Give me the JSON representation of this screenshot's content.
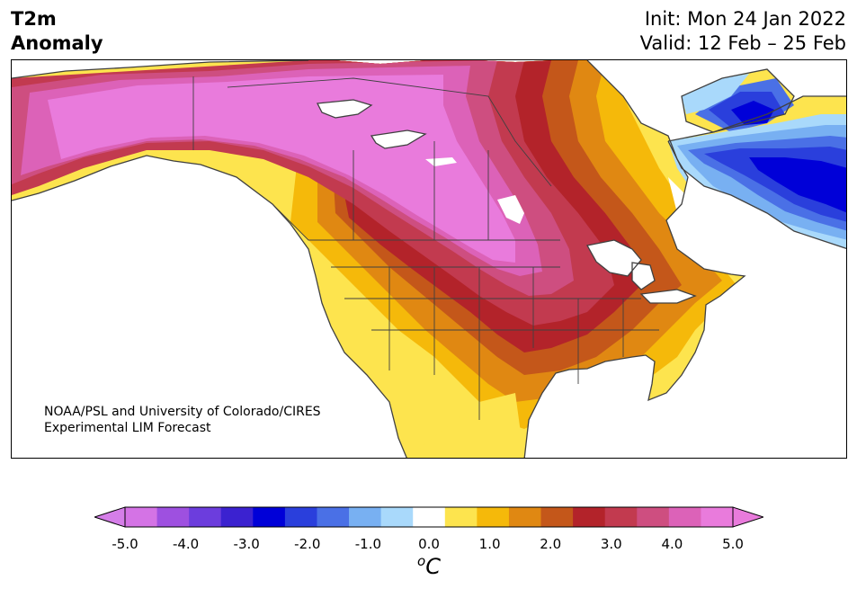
{
  "title": {
    "left_line1": "T2m",
    "left_line2": "Anomaly",
    "right_line1": "Init: Mon 24 Jan 2022",
    "right_line2": "Valid: 12 Feb – 25 Feb"
  },
  "credit": {
    "line1": "NOAA/PSL and University of Colorado/CIRES",
    "line2": "Experimental LIM Forecast"
  },
  "colorbar": {
    "levels": [
      -5.0,
      -4.5,
      -4.0,
      -3.5,
      -3.0,
      -2.5,
      -2.0,
      -1.5,
      -1.0,
      -0.5,
      0.5,
      1.0,
      1.5,
      2.0,
      2.5,
      3.0,
      3.5,
      4.0,
      4.5,
      5.0
    ],
    "colors": [
      "#d473e5",
      "#9e50e0",
      "#6c3ddd",
      "#3b22d0",
      "#0000d8",
      "#2a3fdc",
      "#4a70e6",
      "#78b0f2",
      "#a9d9fb",
      "#ffffff",
      "#fde44e",
      "#f5b90a",
      "#e08812",
      "#c4571a",
      "#b3232a",
      "#c23a4f",
      "#ce4e80",
      "#dc62b8",
      "#e97bdc"
    ],
    "extend_low_color": "#d57ee8",
    "extend_high_color": "#e97bdc",
    "tick_labels": [
      "-5.0",
      "-4.0",
      "-3.0",
      "-2.0",
      "-1.0",
      "0.0",
      "1.0",
      "2.0",
      "3.0",
      "4.0",
      "5.0"
    ],
    "unit_prefix": "o",
    "unit_main": "C"
  }
}
